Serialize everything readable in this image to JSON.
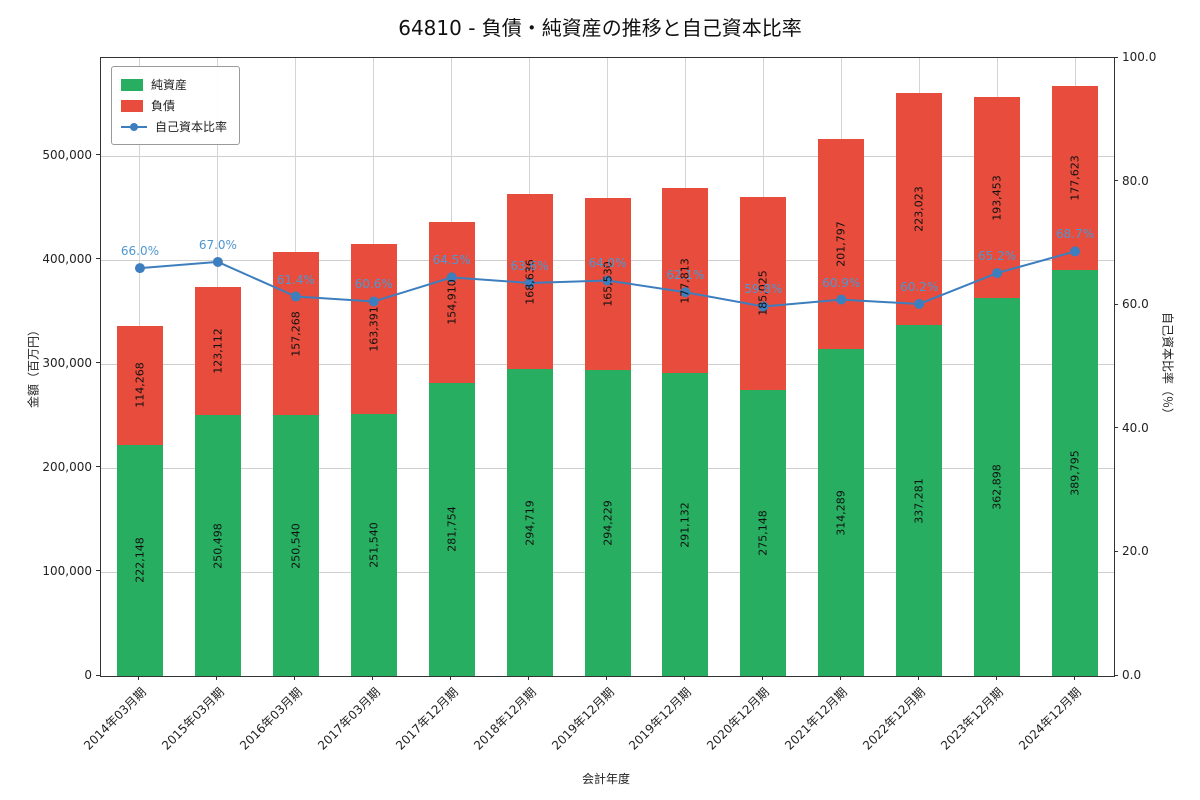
{
  "title": "64810 - 負債・純資産の推移と自己資本比率",
  "chart_data": {
    "type": "bar",
    "stacked": true,
    "categories": [
      "2014年03月期",
      "2015年03月期",
      "2016年03月期",
      "2017年03月期",
      "2017年12月期",
      "2018年12月期",
      "2019年12月期",
      "2019年12月期",
      "2020年12月期",
      "2021年12月期",
      "2022年12月期",
      "2023年12月期",
      "2024年12月期"
    ],
    "series": [
      {
        "name": "純資産",
        "color": "#27ae60",
        "values": [
          222148,
          250498,
          250540,
          251540,
          281754,
          294719,
          294229,
          291132,
          275148,
          314289,
          337281,
          362898,
          389795
        ]
      },
      {
        "name": "負債",
        "color": "#e74c3c",
        "values": [
          114268,
          123112,
          157268,
          163391,
          154910,
          168636,
          165530,
          177813,
          185025,
          201797,
          223023,
          193453,
          177623
        ]
      }
    ],
    "line": {
      "name": "自己資本比率",
      "color": "#3d7ebf",
      "label_color": "#4e97d1",
      "values": [
        66.0,
        67.0,
        61.4,
        60.6,
        64.5,
        63.6,
        64.0,
        62.1,
        59.8,
        60.9,
        60.2,
        65.2,
        68.7
      ],
      "unit": "%"
    },
    "xlabel": "会計年度",
    "ylabel_left": "金額（百万円）",
    "ylabel_right": "自己資本比率（％）",
    "ylim_left": [
      0,
      594000
    ],
    "ylim_right": [
      0,
      100
    ],
    "yticks_left": [
      0,
      100000,
      200000,
      300000,
      400000,
      500000
    ],
    "yticks_right": [
      0.0,
      20.0,
      40.0,
      60.0,
      80.0,
      100.0
    ],
    "grid": true,
    "legend_position": "upper-left"
  }
}
